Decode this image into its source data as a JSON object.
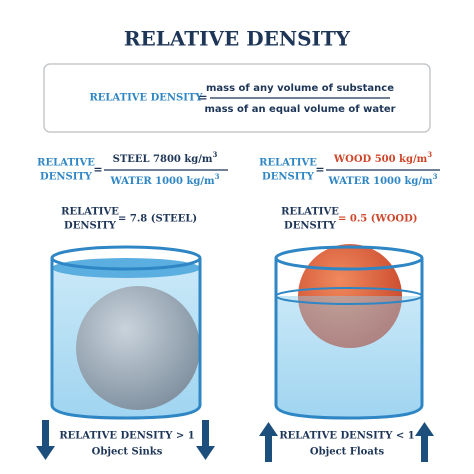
{
  "title": "RELATIVE DENSITY",
  "definition": {
    "label": "RELATIVE DENSITY",
    "equals": "=",
    "numerator": "mass of any volume of substance",
    "denominator": "mass of an equal volume of water"
  },
  "steel": {
    "formula": {
      "label_line1": "RELATIVE",
      "label_line2": "DENSITY",
      "equals": "=",
      "numerator": {
        "text": "STEEL 7800 kg/m",
        "exponent": "3"
      },
      "denominator": {
        "text": "WATER 1000 kg/m",
        "exponent": "3"
      }
    },
    "result": {
      "label_line1": "RELATIVE",
      "label_line2": "DENSITY",
      "text": "= 7.8 (STEEL)"
    },
    "caption": {
      "line1": "RELATIVE DENSITY > 1",
      "line2": "Object Sinks"
    }
  },
  "wood": {
    "formula": {
      "label_line1": "RELATIVE",
      "label_line2": "DENSITY",
      "equals": "=",
      "numerator": {
        "text": "WOOD 500 kg/m",
        "exponent": "3"
      },
      "denominator": {
        "text": "WATER 1000 kg/m",
        "exponent": "3"
      }
    },
    "result": {
      "label_line1": "RELATIVE",
      "label_line2": "DENSITY",
      "text": "= 0.5 (WOOD)"
    },
    "caption": {
      "line1": "RELATIVE DENSITY < 1",
      "line2": "Object Floats"
    }
  }
}
